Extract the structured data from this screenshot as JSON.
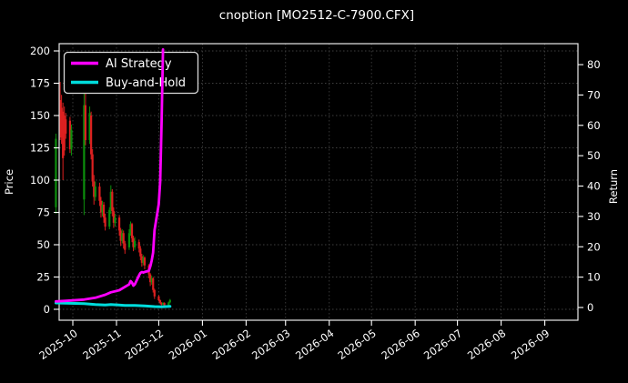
{
  "title": "cnoption [MO2512-C-7900.CFX]",
  "colors": {
    "background": "#000000",
    "text": "#ffffff",
    "spine": "#e8e8e8",
    "grid": "#3e3e3e",
    "ai_strategy": "#ff00ff",
    "buy_and_hold": "#00dcdc",
    "candle_up": "#0c8f0c",
    "candle_down": "#dd2020"
  },
  "legend": {
    "position": "upper left",
    "items": [
      {
        "label": "AI Strategy",
        "color_key": "ai_strategy"
      },
      {
        "label": "Buy-and-Hold",
        "color_key": "buy_and_hold"
      }
    ]
  },
  "axes": {
    "left": {
      "label": "Price",
      "ticks": [
        0,
        25,
        50,
        75,
        100,
        125,
        150,
        175,
        200
      ]
    },
    "right": {
      "label": "Return",
      "ticks": [
        0,
        10,
        20,
        30,
        40,
        50,
        60,
        70,
        80
      ]
    },
    "bottom": {
      "tick_labels": [
        "2025-10",
        "2025-11",
        "2025-12",
        "2026-01",
        "2026-02",
        "2026-03",
        "2026-04",
        "2026-05",
        "2026-06",
        "2026-07",
        "2026-08",
        "2026-09"
      ]
    }
  },
  "chart_data": {
    "type": "candlestick",
    "title": "cnoption [MO2512-C-7900.CFX]",
    "grid": true,
    "legend_position": "upper left",
    "left_axis": {
      "label": "Price",
      "range": [
        -9,
        206
      ]
    },
    "right_axis": {
      "label": "Return",
      "range": [
        -4,
        87
      ]
    },
    "x_axis": {
      "range": [
        "2025-09-19",
        "2026-09-25"
      ],
      "tick_unit": "month"
    },
    "candles_note": "date, open, high, low, close (approx. read from pixels; data runs 2025-09-19 to 2025-12-09 with 2025-10-01..10-08 holiday gap)",
    "candles": [
      [
        "2025-09-19",
        79,
        136,
        74,
        132
      ],
      [
        "2025-09-22",
        162,
        176,
        131,
        135
      ],
      [
        "2025-09-23",
        156,
        166,
        128,
        133
      ],
      [
        "2025-09-24",
        153,
        160,
        100,
        117
      ],
      [
        "2025-09-25",
        150,
        157,
        119,
        123
      ],
      [
        "2025-09-26",
        147,
        152,
        132,
        136
      ],
      [
        "2025-09-29",
        146,
        149,
        121,
        124
      ],
      [
        "2025-09-30",
        124,
        143,
        119,
        139
      ],
      [
        "2025-10-09",
        85,
        168,
        73,
        158
      ],
      [
        "2025-10-10",
        158,
        170,
        127,
        131
      ],
      [
        "2025-10-13",
        131,
        157,
        128,
        152
      ],
      [
        "2025-10-14",
        150,
        153,
        116,
        120
      ],
      [
        "2025-10-15",
        120,
        124,
        95,
        99
      ],
      [
        "2025-10-16",
        99,
        104,
        81,
        87
      ],
      [
        "2025-10-17",
        87,
        99,
        84,
        95
      ],
      [
        "2025-10-20",
        95,
        98,
        80,
        84
      ],
      [
        "2025-10-21",
        84,
        87,
        71,
        75
      ],
      [
        "2025-10-22",
        75,
        84,
        72,
        81
      ],
      [
        "2025-10-23",
        81,
        83,
        67,
        71
      ],
      [
        "2025-10-24",
        71,
        74,
        61,
        64
      ],
      [
        "2025-10-27",
        64,
        79,
        62,
        77
      ],
      [
        "2025-10-28",
        77,
        96,
        74,
        91
      ],
      [
        "2025-10-29",
        91,
        93,
        72,
        76
      ],
      [
        "2025-10-30",
        76,
        79,
        63,
        67
      ],
      [
        "2025-10-31",
        67,
        74,
        64,
        71
      ],
      [
        "2025-11-03",
        71,
        73,
        57,
        61
      ],
      [
        "2025-11-04",
        61,
        63,
        49,
        53
      ],
      [
        "2025-11-05",
        53,
        62,
        51,
        59
      ],
      [
        "2025-11-06",
        59,
        61,
        47,
        51
      ],
      [
        "2025-11-07",
        51,
        53,
        43,
        46
      ],
      [
        "2025-11-10",
        48,
        62,
        46,
        59
      ],
      [
        "2025-11-11",
        59,
        68,
        57,
        66
      ],
      [
        "2025-11-12",
        66,
        67,
        52,
        55
      ],
      [
        "2025-11-13",
        55,
        57,
        45,
        48
      ],
      [
        "2025-11-14",
        48,
        56,
        46,
        53
      ],
      [
        "2025-11-17",
        52,
        54,
        44,
        47
      ],
      [
        "2025-11-18",
        47,
        49,
        38,
        41
      ],
      [
        "2025-11-19",
        41,
        43,
        33,
        36
      ],
      [
        "2025-11-20",
        36,
        42,
        34,
        40
      ],
      [
        "2025-11-21",
        40,
        41,
        31,
        34
      ],
      [
        "2025-11-24",
        34,
        35,
        24,
        27
      ],
      [
        "2025-11-25",
        27,
        28,
        18,
        21
      ],
      [
        "2025-11-26",
        21,
        26,
        19,
        24
      ],
      [
        "2025-11-27",
        24,
        25,
        13,
        15
      ],
      [
        "2025-11-28",
        15,
        16,
        8,
        10
      ],
      [
        "2025-12-01",
        10,
        11,
        6,
        7
      ],
      [
        "2025-12-02",
        7,
        7.5,
        4,
        5
      ],
      [
        "2025-12-03",
        5,
        5.5,
        3,
        3.6
      ],
      [
        "2025-12-04",
        3.6,
        5.5,
        3.2,
        5
      ],
      [
        "2025-12-05",
        5,
        5.4,
        2.6,
        3.2
      ],
      [
        "2025-12-08",
        3.2,
        6,
        2.9,
        5.4
      ],
      [
        "2025-12-09",
        5.4,
        8,
        4.6,
        7.2
      ]
    ],
    "series": [
      {
        "name": "AI Strategy",
        "axis": "right",
        "color": "#ff00ff",
        "points": [
          [
            "2025-09-19",
            2.0
          ],
          [
            "2025-09-26",
            2.2
          ],
          [
            "2025-10-09",
            2.6
          ],
          [
            "2025-10-17",
            3.2
          ],
          [
            "2025-10-24",
            4.2
          ],
          [
            "2025-10-28",
            5.0
          ],
          [
            "2025-11-03",
            5.7
          ],
          [
            "2025-11-07",
            6.8
          ],
          [
            "2025-11-10",
            7.6
          ],
          [
            "2025-11-11",
            8.7
          ],
          [
            "2025-11-12",
            8.2
          ],
          [
            "2025-11-13",
            7.2
          ],
          [
            "2025-11-14",
            7.6
          ],
          [
            "2025-11-17",
            10.6
          ],
          [
            "2025-11-18",
            11.4
          ],
          [
            "2025-11-19",
            11.7
          ],
          [
            "2025-11-20",
            11.5
          ],
          [
            "2025-11-21",
            11.7
          ],
          [
            "2025-11-24",
            12.1
          ],
          [
            "2025-11-25",
            13.5
          ],
          [
            "2025-11-26",
            15.5
          ],
          [
            "2025-11-27",
            18.0
          ],
          [
            "2025-11-28",
            25.5
          ],
          [
            "2025-12-01",
            34.0
          ],
          [
            "2025-12-02",
            41.5
          ],
          [
            "2025-12-03",
            60.5
          ],
          [
            "2025-12-04",
            85.0
          ]
        ]
      },
      {
        "name": "Buy-and-Hold",
        "axis": "right",
        "color": "#00dcdc",
        "points": [
          [
            "2025-09-19",
            1.5
          ],
          [
            "2025-10-09",
            1.3
          ],
          [
            "2025-10-17",
            1.0
          ],
          [
            "2025-10-24",
            0.8
          ],
          [
            "2025-10-28",
            1.0
          ],
          [
            "2025-11-07",
            0.7
          ],
          [
            "2025-11-14",
            0.65
          ],
          [
            "2025-11-21",
            0.5
          ],
          [
            "2025-11-28",
            0.3
          ],
          [
            "2025-12-03",
            0.2
          ],
          [
            "2025-12-09",
            0.35
          ]
        ]
      }
    ]
  }
}
